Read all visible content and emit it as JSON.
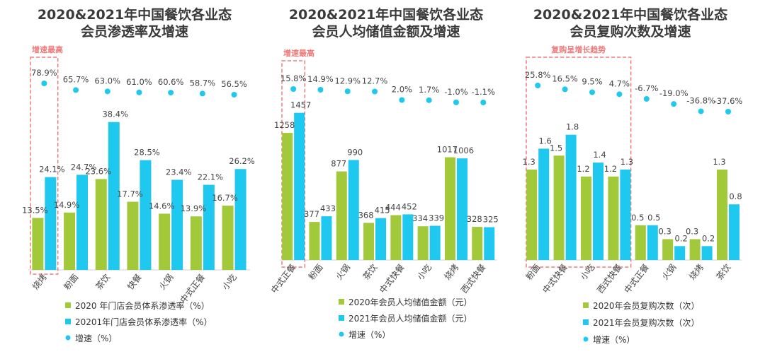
{
  "colors": {
    "series2020": "#a2c93a",
    "series2021": "#1ec8ef",
    "growth": "#1ec8ef",
    "highlight": "#f07a7a"
  },
  "chart_data": [
    {
      "type": "bar",
      "title": [
        "2020&2021年中国餐饮各业态",
        "会员渗透率及增速"
      ],
      "categories": [
        "烧烤",
        "粉面",
        "茶饮",
        "快餐",
        "火锅",
        "中式正餐",
        "小吃"
      ],
      "series": [
        {
          "name": "2020 年门店会员体系渗透率（%）",
          "values": [
            13.5,
            14.9,
            23.6,
            17.7,
            14.6,
            13.9,
            16.7
          ],
          "labels": [
            "13.5%",
            "14.9%",
            "23.6%",
            "17.7%",
            "14.6%",
            "13.9%",
            "16.7%"
          ]
        },
        {
          "name": "20201年门店会员体系渗透率（%）",
          "values": [
            24.1,
            24.7,
            38.4,
            28.5,
            23.4,
            22.1,
            26.2
          ],
          "labels": [
            "24.1%",
            "24.7%",
            "38.4%",
            "28.5%",
            "23.4%",
            "22.1%",
            "26.2%"
          ]
        }
      ],
      "growth": {
        "name": "增速（%）",
        "values": [
          78.9,
          65.7,
          63.0,
          61.0,
          60.6,
          58.7,
          56.5
        ],
        "labels": [
          "78.9%",
          "65.7%",
          "63.0%",
          "61.0%",
          "60.6%",
          "58.7%",
          "56.5%"
        ]
      },
      "highlight": {
        "label": "增速最高",
        "categories": [
          "烧烤"
        ]
      }
    },
    {
      "type": "bar",
      "title": [
        "2020&2021年中国餐饮各业态",
        "会员人均储值金额及增速"
      ],
      "categories": [
        "中式正餐",
        "粉面",
        "火锅",
        "茶饮",
        "中式快餐",
        "小吃",
        "烧烤",
        "西式快餐"
      ],
      "series": [
        {
          "name": "2020年会员人均储值金额（元）",
          "values": [
            1258,
            377,
            877,
            368,
            444,
            334,
            1017,
            328
          ],
          "labels": [
            "1258",
            "377",
            "877",
            "368",
            "444",
            "334",
            "1017",
            "328"
          ]
        },
        {
          "name": "2021年会员人均储值金额（元）",
          "values": [
            1457,
            433,
            990,
            415,
            452,
            339,
            1006,
            325
          ],
          "labels": [
            "1457",
            "433",
            "990",
            "415",
            "452",
            "339",
            "1006",
            "325"
          ]
        }
      ],
      "growth": {
        "name": "增速（%）",
        "values": [
          15.8,
          14.9,
          12.9,
          12.7,
          2.0,
          1.7,
          -1.0,
          -1.1
        ],
        "labels": [
          "15.8%",
          "14.9%",
          "12.9%",
          "12.7%",
          "2.0%",
          "1.7%",
          "-1.0%",
          "-1.1%"
        ]
      },
      "highlight": {
        "label": "增速最高",
        "categories": [
          "中式正餐"
        ]
      }
    },
    {
      "type": "bar",
      "title": [
        "2020&2021年中国餐饮各业态",
        "会员复购次数及增速"
      ],
      "categories": [
        "粉面",
        "中式快餐",
        "小吃",
        "西式快餐",
        "中式正餐",
        "火锅",
        "烧烤",
        "茶饮"
      ],
      "series": [
        {
          "name": "2020年会员复购次数（次）",
          "values": [
            1.3,
            1.5,
            1.2,
            1.2,
            0.5,
            0.3,
            0.3,
            1.3
          ],
          "labels": [
            "1.3",
            "1.5",
            "1.2",
            "1.2",
            "0.5",
            "0.3",
            "0.3",
            "1.3"
          ]
        },
        {
          "name": "2021年会员复购次数（次）",
          "values": [
            1.6,
            1.8,
            1.4,
            1.3,
            0.5,
            0.2,
            0.2,
            0.8
          ],
          "labels": [
            "1.6",
            "1.8",
            "1.4",
            "1.3",
            "0.5",
            "0.2",
            "0.2",
            "0.8"
          ]
        }
      ],
      "growth": {
        "name": "增速（%）",
        "values": [
          25.8,
          16.5,
          9.5,
          4.7,
          -6.7,
          -19.0,
          -36.8,
          -37.6
        ],
        "labels": [
          "25.8%",
          "16.5%",
          "9.5%",
          "4.7%",
          "-6.7%",
          "-19.0%",
          "-36.8%",
          "-37.6%"
        ]
      },
      "highlight": {
        "label": "复购呈增长趋势",
        "categories": [
          "粉面",
          "中式快餐",
          "小吃",
          "西式快餐"
        ]
      }
    }
  ]
}
